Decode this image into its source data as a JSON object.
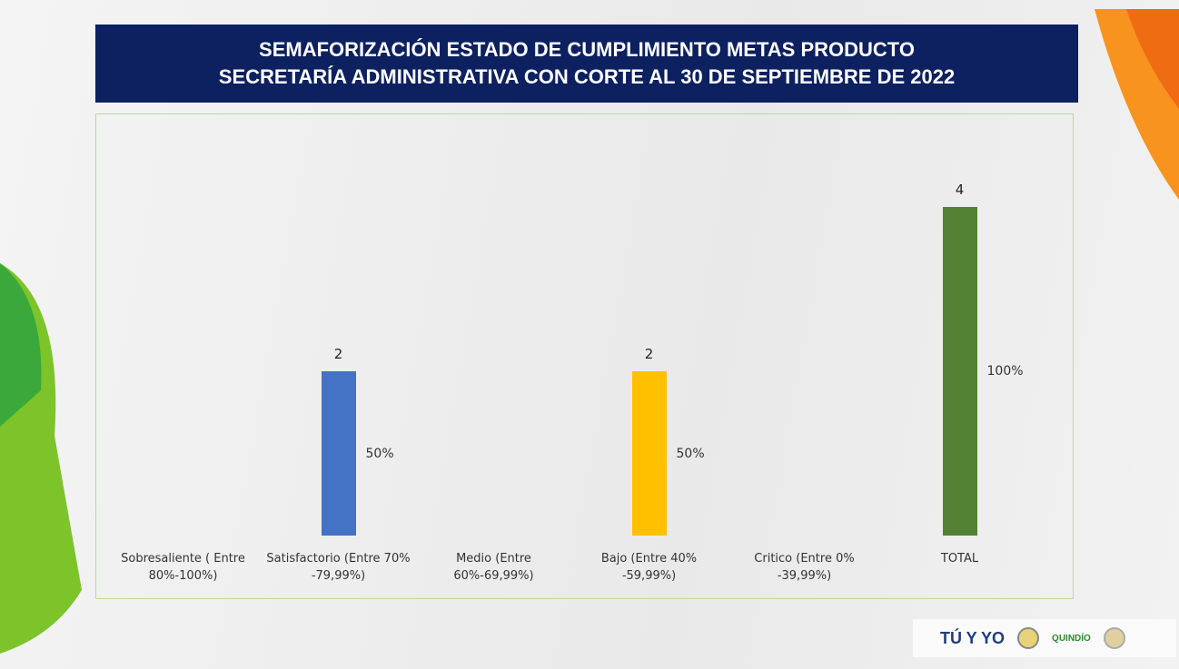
{
  "chart_data": {
    "type": "bar",
    "title": "SEMAFORIZACIÓN  ESTADO DE CUMPLIMIENTO METAS PRODUCTO",
    "subtitle": "SECRETARÍA ADMINISTRATIVA CON CORTE AL  30 DE SEPTIEMBRE DE 2022",
    "categories": [
      "Sobresaliente ( Entre 80%-100%)",
      "Satisfactorio (Entre 70% -79,99%)",
      "Medio (Entre 60%-69,99%)",
      "Bajo (Entre 40% -59,99%)",
      "Critico (Entre 0% -39,99%)",
      "TOTAL"
    ],
    "values": [
      0,
      2,
      0,
      2,
      0,
      4
    ],
    "value_labels": [
      null,
      "2",
      null,
      "2",
      null,
      "4"
    ],
    "percent_labels": [
      null,
      "50%",
      null,
      "50%",
      null,
      "100%"
    ],
    "colors": [
      "#00b050",
      "#4472c4",
      "#a5a5a5",
      "#ffc000",
      "#c00000",
      "#548235"
    ],
    "ylim": [
      0,
      4
    ],
    "grid": false
  },
  "footer": {
    "logos": [
      "TÚ Y YO",
      "QUINDÍO"
    ]
  }
}
